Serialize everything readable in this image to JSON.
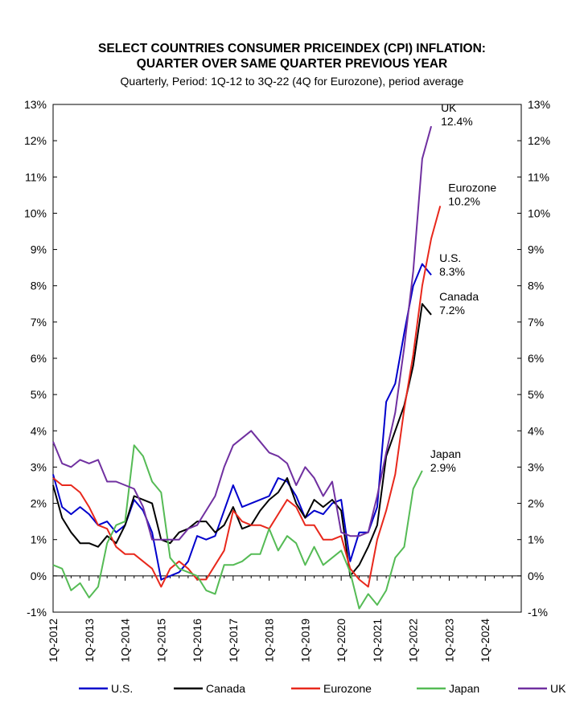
{
  "chart_data": {
    "type": "line",
    "title_line1": "SELECT COUNTRIES CONSUMER PRICEINDEX (CPI) INFLATION:",
    "title_line2": "QUARTER OVER SAME QUARTER PREVIOUS YEAR",
    "subtitle": "Quarterly, Period: 1Q-12 to 3Q-22 (4Q for Eurozone), period average",
    "xlabel": "",
    "ylabel": "",
    "ylim": [
      -1,
      13
    ],
    "y_ticks": [
      "-1%",
      "0%",
      "1%",
      "2%",
      "3%",
      "4%",
      "5%",
      "6%",
      "7%",
      "8%",
      "9%",
      "10%",
      "11%",
      "12%",
      "13%"
    ],
    "x_tick_labels": [
      "1Q-2012",
      "1Q-2013",
      "1Q-2014",
      "1Q-2015",
      "1Q-2016",
      "1Q-2017",
      "1Q-2018",
      "1Q-2019",
      "1Q-2020",
      "1Q-2021",
      "1Q-2022",
      "1Q-2023",
      "1Q-2024"
    ],
    "x_quarters_range": [
      "1Q-2012",
      "4Q-2024"
    ],
    "grid": false,
    "legend_position": "bottom",
    "series": [
      {
        "name": "U.S.",
        "color": "#0000cc",
        "end_label": "U.S.",
        "end_value_label": "8.3%",
        "values": [
          2.8,
          1.9,
          1.7,
          1.9,
          1.7,
          1.4,
          1.5,
          1.2,
          1.4,
          2.1,
          1.8,
          1.2,
          -0.1,
          0.0,
          0.1,
          0.4,
          1.1,
          1.0,
          1.1,
          1.8,
          2.5,
          1.9,
          2.0,
          2.1,
          2.2,
          2.7,
          2.6,
          2.2,
          1.6,
          1.8,
          1.7,
          2.0,
          2.1,
          0.4,
          1.2,
          1.2,
          1.9,
          4.8,
          5.3,
          6.7,
          8.0,
          8.6,
          8.3
        ]
      },
      {
        "name": "Canada",
        "color": "#000000",
        "end_label": "Canada",
        "end_value_label": "7.2%",
        "values": [
          2.5,
          1.6,
          1.2,
          0.9,
          0.9,
          0.8,
          1.1,
          0.9,
          1.4,
          2.2,
          2.1,
          2.0,
          1.0,
          0.9,
          1.2,
          1.3,
          1.5,
          1.5,
          1.2,
          1.4,
          1.9,
          1.3,
          1.4,
          1.8,
          2.1,
          2.3,
          2.7,
          2.0,
          1.6,
          2.1,
          1.9,
          2.1,
          1.8,
          0.0,
          0.3,
          0.8,
          1.4,
          3.3,
          4.0,
          4.7,
          5.8,
          7.5,
          7.2
        ]
      },
      {
        "name": "Eurozone",
        "color": "#e8281c",
        "end_label": "Eurozone",
        "end_value_label": "10.2%",
        "values": [
          2.7,
          2.5,
          2.5,
          2.3,
          1.9,
          1.4,
          1.3,
          0.8,
          0.6,
          0.6,
          0.4,
          0.2,
          -0.3,
          0.2,
          0.4,
          0.2,
          -0.1,
          -0.1,
          0.3,
          0.7,
          1.8,
          1.5,
          1.4,
          1.4,
          1.3,
          1.7,
          2.1,
          1.9,
          1.4,
          1.4,
          1.0,
          1.0,
          1.1,
          0.2,
          -0.1,
          -0.3,
          1.0,
          1.8,
          2.8,
          4.6,
          6.1,
          8.0,
          9.3,
          10.2
        ]
      },
      {
        "name": "Japan",
        "color": "#55bb55",
        "end_label": "Japan",
        "end_value_label": "2.9%",
        "values": [
          0.3,
          0.2,
          -0.4,
          -0.2,
          -0.6,
          -0.3,
          0.9,
          1.4,
          1.5,
          3.6,
          3.3,
          2.6,
          2.3,
          0.5,
          0.2,
          0.1,
          0.0,
          -0.4,
          -0.5,
          0.3,
          0.3,
          0.4,
          0.6,
          0.6,
          1.3,
          0.7,
          1.1,
          0.9,
          0.3,
          0.8,
          0.3,
          0.5,
          0.7,
          0.1,
          -0.9,
          -0.5,
          -0.8,
          -0.4,
          0.5,
          0.8,
          2.4,
          2.9
        ]
      },
      {
        "name": "UK",
        "color": "#7030a0",
        "end_label": "UK",
        "end_value_label": "12.4%",
        "values": [
          3.7,
          3.1,
          3.0,
          3.2,
          3.1,
          3.2,
          2.6,
          2.6,
          2.5,
          2.4,
          1.9,
          1.0,
          1.0,
          1.0,
          1.0,
          1.3,
          1.4,
          1.8,
          2.2,
          3.0,
          3.6,
          3.8,
          4.0,
          3.7,
          3.4,
          3.3,
          3.1,
          2.5,
          3.0,
          2.7,
          2.2,
          2.6,
          1.2,
          1.1,
          1.1,
          1.2,
          2.2,
          3.4,
          4.5,
          6.3,
          8.4,
          11.5,
          12.4
        ]
      }
    ]
  }
}
